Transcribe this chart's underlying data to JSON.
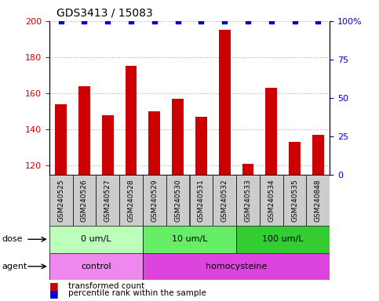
{
  "title": "GDS3413 / 15083",
  "categories": [
    "GSM240525",
    "GSM240526",
    "GSM240527",
    "GSM240528",
    "GSM240529",
    "GSM240530",
    "GSM240531",
    "GSM240532",
    "GSM240533",
    "GSM240534",
    "GSM240535",
    "GSM240848"
  ],
  "red_values": [
    154,
    164,
    148,
    175,
    150,
    157,
    147,
    195,
    121,
    163,
    133,
    137
  ],
  "blue_values": [
    100,
    100,
    100,
    100,
    100,
    100,
    100,
    100,
    100,
    100,
    100,
    100
  ],
  "ylim_left": [
    115,
    200
  ],
  "ylim_right": [
    0,
    100
  ],
  "yticks_left": [
    120,
    140,
    160,
    180,
    200
  ],
  "yticks_right": [
    0,
    25,
    50,
    75,
    100
  ],
  "yticklabels_right": [
    "0",
    "25",
    "50",
    "75",
    "100%"
  ],
  "dose_groups": [
    {
      "label": "0 um/L",
      "start": 0,
      "end": 4,
      "color": "#bbffbb"
    },
    {
      "label": "10 um/L",
      "start": 4,
      "end": 8,
      "color": "#66ee66"
    },
    {
      "label": "100 um/L",
      "start": 8,
      "end": 12,
      "color": "#33cc33"
    }
  ],
  "agent_groups": [
    {
      "label": "control",
      "start": 0,
      "end": 4,
      "color": "#ee88ee"
    },
    {
      "label": "homocysteine",
      "start": 4,
      "end": 12,
      "color": "#dd44dd"
    }
  ],
  "legend_red_label": "transformed count",
  "legend_blue_label": "percentile rank within the sample",
  "dose_label": "dose",
  "agent_label": "agent",
  "bar_color": "#cc0000",
  "dot_color": "#0000cc",
  "grid_color": "#aaaaaa",
  "ylabel_left_color": "#cc0000",
  "ylabel_right_color": "#0000cc",
  "tick_label_bg": "#cccccc",
  "sample_row_bg": "#cccccc"
}
